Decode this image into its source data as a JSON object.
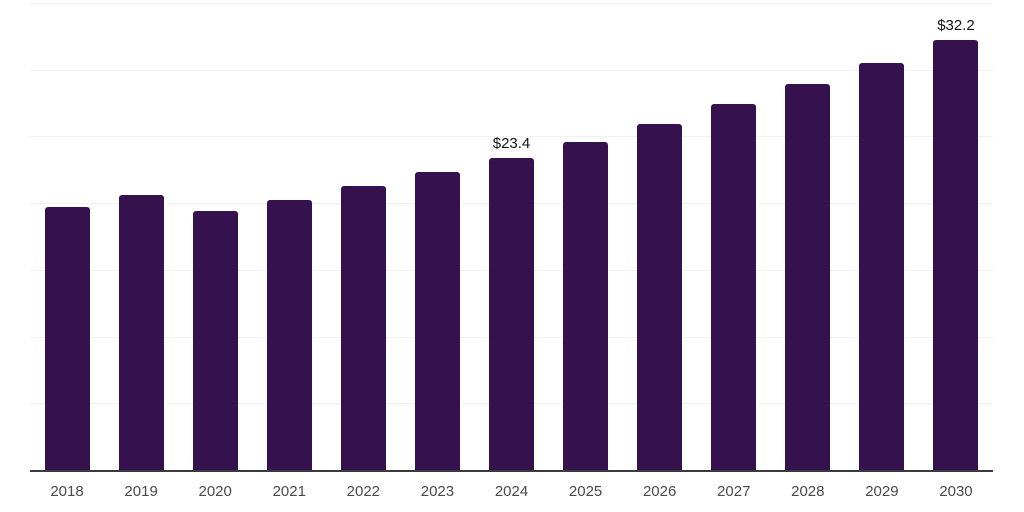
{
  "chart": {
    "bar_color": "#35114E",
    "grid_color": "#F1F1F4",
    "axis_color": "#3B3B3B",
    "tick_label_color": "#4A4A4A",
    "data_label_color": "#141414",
    "background_color": "#FFFFFF"
  },
  "chart_data": {
    "type": "bar",
    "title": "",
    "xlabel": "",
    "ylabel": "",
    "categories": [
      "2018",
      "2019",
      "2020",
      "2021",
      "2022",
      "2023",
      "2024",
      "2025",
      "2026",
      "2027",
      "2028",
      "2029",
      "2030"
    ],
    "values": [
      19.7,
      20.6,
      19.4,
      20.2,
      21.3,
      22.3,
      23.4,
      24.6,
      25.9,
      27.4,
      28.9,
      30.5,
      32.2
    ],
    "data_labels": [
      "",
      "",
      "",
      "",
      "",
      "",
      "$23.4",
      "",
      "",
      "",
      "",
      "",
      "$32.2"
    ],
    "ylim": [
      0,
      35
    ],
    "gridline_values": [
      5,
      10,
      15,
      20,
      25,
      30,
      35
    ],
    "grid": "horizontal",
    "y_tick_labels": "none",
    "legend": "none"
  }
}
